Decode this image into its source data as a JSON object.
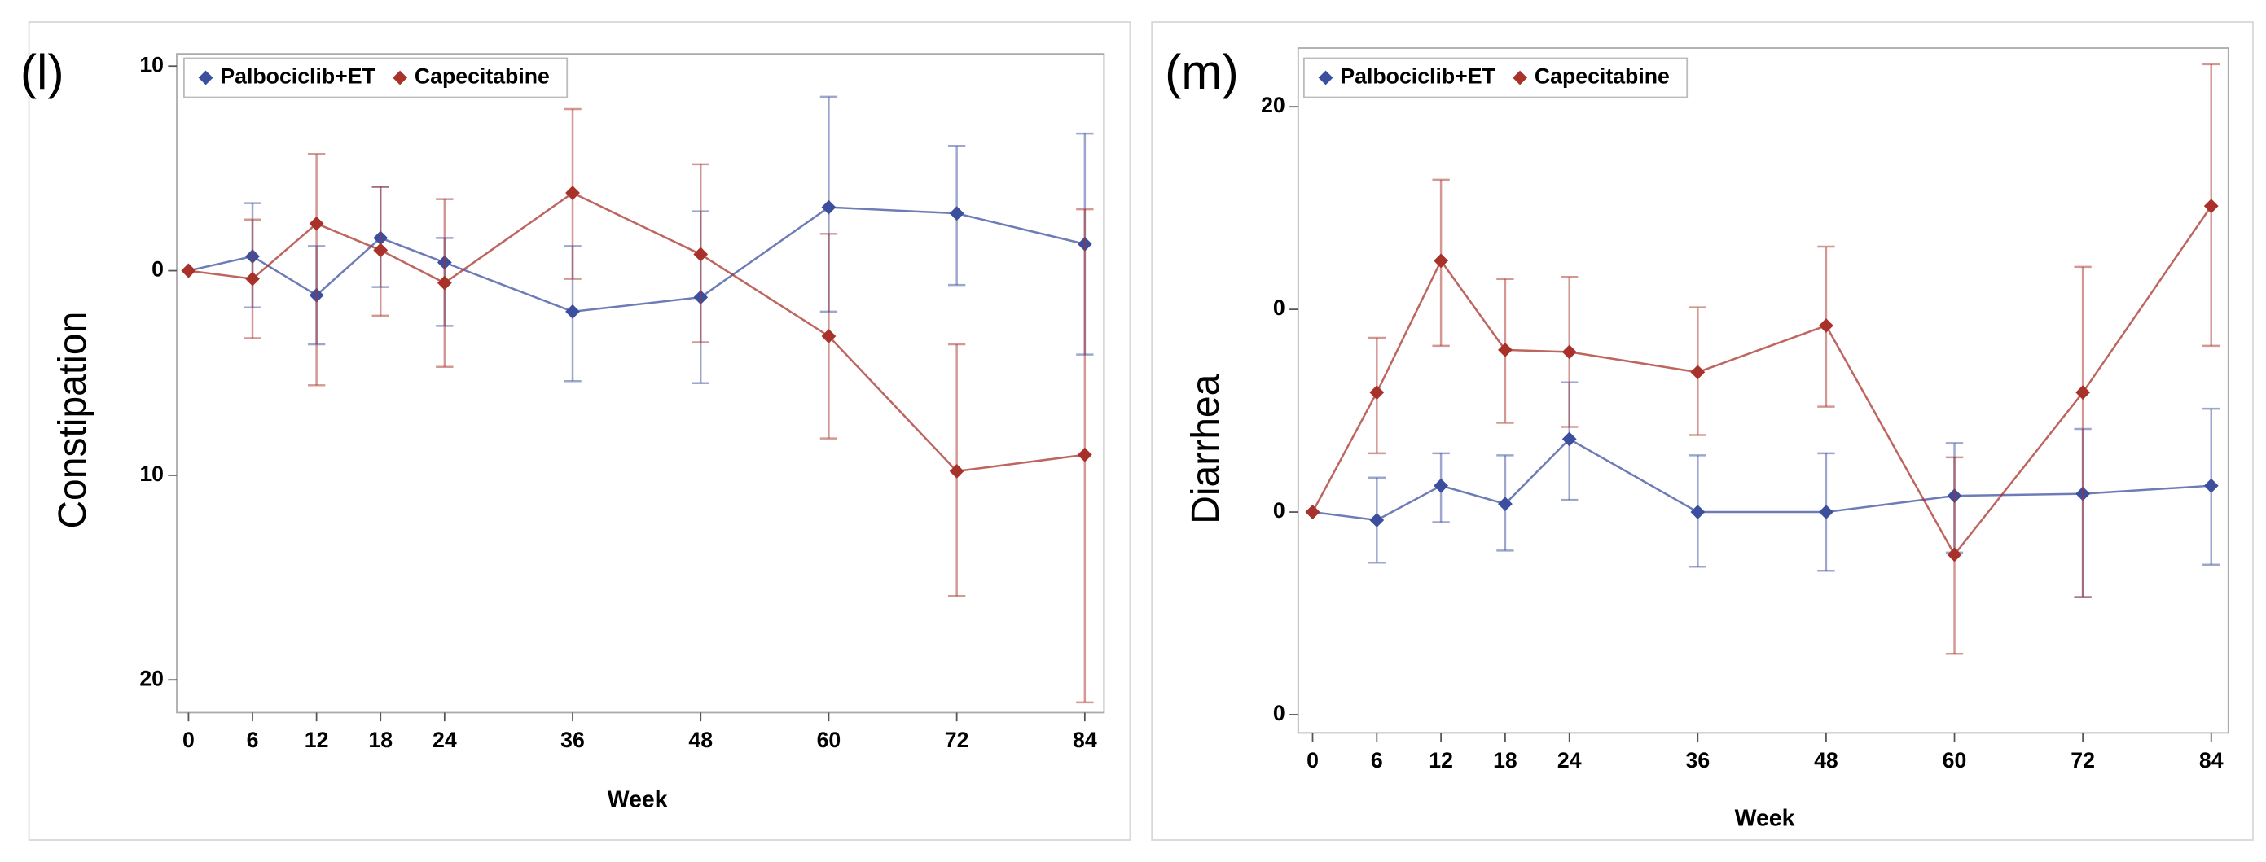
{
  "chart_data": [
    {
      "type": "line",
      "panel_label": "(l)",
      "ylabel": "Constipation",
      "xlabel": "Week",
      "x": [
        0,
        6,
        12,
        18,
        24,
        36,
        48,
        60,
        72,
        84
      ],
      "xlim": [
        -1.1,
        85.8
      ],
      "xticks": [
        0,
        6,
        12,
        18,
        24,
        36,
        48,
        60,
        72,
        84
      ],
      "ylim": [
        -21.6,
        10.6
      ],
      "yticks": [
        {
          "value": -20,
          "label": "20"
        },
        {
          "value": -10,
          "label": "10"
        },
        0,
        10
      ],
      "legend_position": "top-left",
      "series": [
        {
          "name": "Palbociclib+ET",
          "color": "#3c4f9e",
          "values": [
            0,
            0.7,
            -1.2,
            1.6,
            0.4,
            -2.0,
            -1.3,
            3.1,
            2.8,
            1.3
          ],
          "lower": [
            null,
            -1.8,
            -3.6,
            -0.8,
            -2.7,
            -5.4,
            -5.5,
            -2.0,
            -0.7,
            -4.1
          ],
          "upper": [
            null,
            3.3,
            1.2,
            4.1,
            1.6,
            1.2,
            2.9,
            8.5,
            6.1,
            6.7
          ]
        },
        {
          "name": "Capecitabine",
          "color": "#a8322a",
          "values": [
            0,
            -0.4,
            2.3,
            1.0,
            -0.6,
            3.8,
            0.8,
            -3.2,
            -9.8,
            -9.0
          ],
          "lower": [
            null,
            -3.3,
            -5.6,
            -2.2,
            -4.7,
            -0.4,
            -3.5,
            -8.2,
            -15.9,
            -21.1
          ],
          "upper": [
            null,
            2.5,
            5.7,
            4.1,
            3.5,
            7.9,
            5.2,
            1.8,
            -3.6,
            3.0
          ]
        }
      ]
    },
    {
      "type": "line",
      "panel_label": "(m)",
      "ylabel": "Diarrhea",
      "xlabel": "Week",
      "x": [
        0,
        6,
        12,
        18,
        24,
        36,
        48,
        60,
        72,
        84
      ],
      "xlim": [
        -1.35,
        85.6
      ],
      "xticks": [
        0,
        6,
        12,
        18,
        24,
        36,
        48,
        60,
        72,
        84
      ],
      "ylim": [
        -10.9,
        22.9
      ],
      "yticks": [
        {
          "value": -10,
          "label": "0"
        },
        0,
        {
          "value": 10,
          "label": "0"
        },
        20
      ],
      "legend_position": "top-left",
      "series": [
        {
          "name": "Palbociclib+ET",
          "color": "#3c4f9e",
          "values": [
            0,
            -0.4,
            1.3,
            0.4,
            3.6,
            0,
            0,
            0.8,
            0.9,
            1.3
          ],
          "lower": [
            null,
            -2.5,
            -0.5,
            -1.9,
            0.6,
            -2.7,
            -2.9,
            -2.0,
            -4.2,
            -2.6
          ],
          "upper": [
            null,
            1.7,
            2.9,
            2.8,
            6.4,
            2.8,
            2.9,
            3.4,
            4.1,
            5.1
          ]
        },
        {
          "name": "Capecitabine",
          "color": "#a8322a",
          "values": [
            0,
            5.9,
            12.4,
            8.0,
            7.9,
            6.9,
            9.2,
            -2.1,
            5.9,
            15.1
          ],
          "lower": [
            null,
            2.9,
            8.2,
            4.4,
            4.2,
            3.8,
            5.2,
            -7.0,
            -4.2,
            8.2
          ],
          "upper": [
            null,
            8.6,
            16.4,
            11.5,
            11.6,
            10.1,
            13.1,
            2.7,
            12.1,
            22.1
          ]
        }
      ]
    }
  ]
}
